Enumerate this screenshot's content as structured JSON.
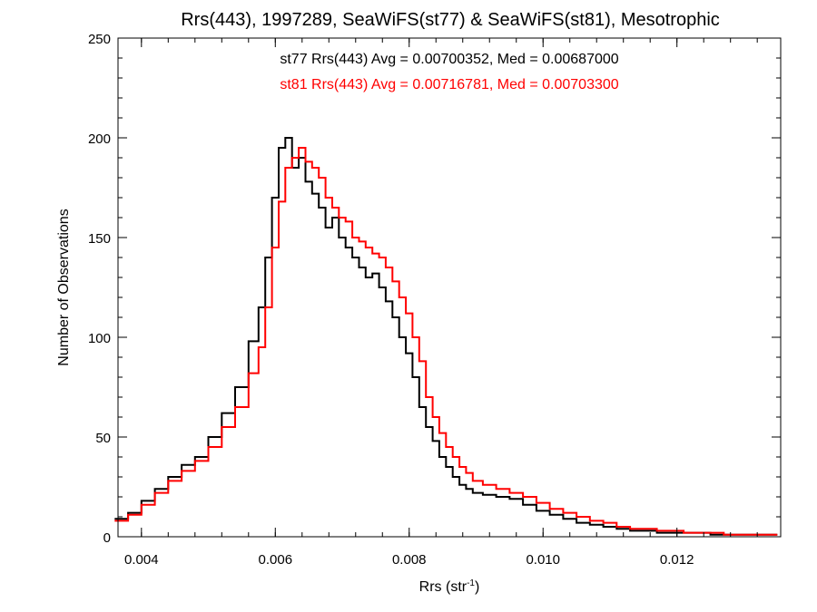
{
  "chart_data": {
    "type": "line",
    "step": true,
    "title": "Rrs(443), 1997289, SeaWiFS(st77) & SeaWiFS(st81), Mesotrophic",
    "xlabel": "Rrs (str",
    "xlabel_sup": "-1",
    "xlabel_end": ")",
    "ylabel": "Number of Observations",
    "xlim": [
      0.00365,
      0.01355
    ],
    "ylim": [
      0,
      250
    ],
    "xticks": [
      0.004,
      0.006,
      0.008,
      0.01,
      0.012
    ],
    "xtick_labels": [
      "0.004",
      "0.006",
      "0.008",
      "0.010",
      "0.012"
    ],
    "yticks": [
      0,
      50,
      100,
      150,
      200,
      250
    ],
    "ytick_labels": [
      "0",
      "50",
      "100",
      "150",
      "200",
      "250"
    ],
    "legend": [
      "st77 Rrs(443) Avg = 0.00700352, Med = 0.00687000",
      "st81 Rrs(443) Avg = 0.00716781, Med = 0.00703300"
    ],
    "grid": false,
    "series": [
      {
        "color": "#000000",
        "x": [
          0.0037,
          0.0039,
          0.0041,
          0.0043,
          0.0045,
          0.0047,
          0.0049,
          0.0051,
          0.0053,
          0.0055,
          0.0057,
          0.0058,
          0.0059,
          0.006,
          0.0061,
          0.0062,
          0.0063,
          0.0064,
          0.0065,
          0.0066,
          0.0067,
          0.0068,
          0.0069,
          0.007,
          0.0071,
          0.0072,
          0.0073,
          0.0074,
          0.0075,
          0.0076,
          0.0077,
          0.0078,
          0.0079,
          0.008,
          0.0081,
          0.0082,
          0.0083,
          0.0084,
          0.0085,
          0.0086,
          0.0087,
          0.0088,
          0.0089,
          0.009,
          0.0092,
          0.0094,
          0.0096,
          0.0098,
          0.01,
          0.0102,
          0.0104,
          0.0106,
          0.0108,
          0.011,
          0.0112,
          0.0114,
          0.0116,
          0.0118,
          0.012,
          0.0122,
          0.0124,
          0.0126,
          0.0128,
          0.013,
          0.0132,
          0.0134
        ],
        "y": [
          9,
          12,
          18,
          24,
          30,
          36,
          40,
          50,
          62,
          75,
          98,
          115,
          140,
          170,
          195,
          200,
          185,
          190,
          178,
          172,
          165,
          155,
          160,
          150,
          145,
          140,
          135,
          130,
          132,
          125,
          118,
          110,
          100,
          92,
          80,
          65,
          55,
          48,
          40,
          35,
          30,
          26,
          24,
          22,
          21,
          20,
          19,
          16,
          13,
          11,
          9,
          7,
          6,
          5,
          4,
          3,
          3,
          2,
          2,
          2,
          2,
          1,
          1,
          1,
          1,
          1
        ]
      },
      {
        "color": "#ff0000",
        "x": [
          0.0037,
          0.0039,
          0.0041,
          0.0043,
          0.0045,
          0.0047,
          0.0049,
          0.0051,
          0.0053,
          0.0055,
          0.0057,
          0.0058,
          0.0059,
          0.006,
          0.0061,
          0.0062,
          0.0063,
          0.0064,
          0.0065,
          0.0066,
          0.0067,
          0.0068,
          0.0069,
          0.007,
          0.0071,
          0.0072,
          0.0073,
          0.0074,
          0.0075,
          0.0076,
          0.0077,
          0.0078,
          0.0079,
          0.008,
          0.0081,
          0.0082,
          0.0083,
          0.0084,
          0.0085,
          0.0086,
          0.0087,
          0.0088,
          0.0089,
          0.009,
          0.0092,
          0.0094,
          0.0096,
          0.0098,
          0.01,
          0.0102,
          0.0104,
          0.0106,
          0.0108,
          0.011,
          0.0112,
          0.0114,
          0.0116,
          0.0118,
          0.012,
          0.0122,
          0.0124,
          0.0126,
          0.0128,
          0.013,
          0.0132,
          0.0134
        ],
        "y": [
          8,
          11,
          16,
          22,
          28,
          33,
          38,
          45,
          55,
          65,
          82,
          95,
          115,
          145,
          168,
          185,
          190,
          195,
          188,
          185,
          180,
          170,
          165,
          160,
          158,
          150,
          148,
          145,
          142,
          140,
          135,
          128,
          120,
          112,
          100,
          88,
          70,
          60,
          52,
          45,
          40,
          35,
          32,
          28,
          26,
          24,
          22,
          20,
          17,
          14,
          12,
          10,
          8,
          7,
          5,
          4,
          4,
          3,
          3,
          2,
          2,
          2,
          1,
          1,
          1,
          1
        ]
      }
    ]
  }
}
